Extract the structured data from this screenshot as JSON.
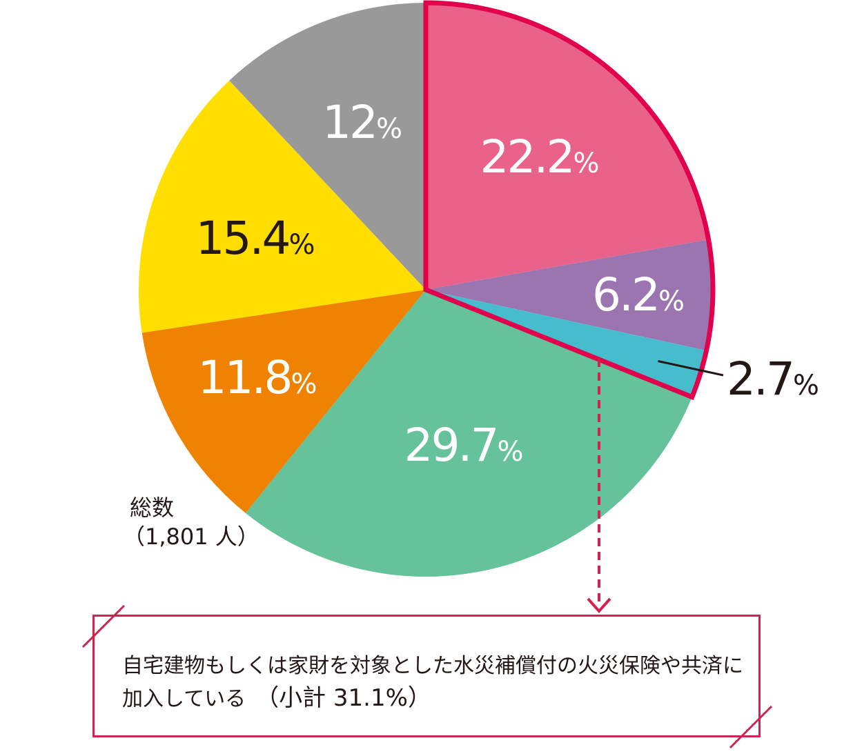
{
  "chart_data": {
    "type": "pie",
    "start_angle_deg": 0,
    "direction": "clockwise",
    "slices": [
      {
        "value": 22.2,
        "label": "22.2",
        "unit": "%",
        "color": "#e96289",
        "text_color": "#ffffff"
      },
      {
        "value": 6.2,
        "label": "6.2",
        "unit": "%",
        "color": "#9b75b0",
        "text_color": "#ffffff"
      },
      {
        "value": 2.7,
        "label": "2.7",
        "unit": "%",
        "color": "#47bccd",
        "text_color": "#231815"
      },
      {
        "value": 29.7,
        "label": "29.7",
        "unit": "%",
        "color": "#65c29a",
        "text_color": "#ffffff"
      },
      {
        "value": 11.8,
        "label": "11.8",
        "unit": "%",
        "color": "#ef8200",
        "text_color": "#ffffff"
      },
      {
        "value": 15.4,
        "label": "15.4",
        "unit": "%",
        "color": "#ffde00",
        "text_color": "#231815"
      },
      {
        "value": 12,
        "label": "12",
        "unit": "%",
        "color": "#999999",
        "text_color": "#ffffff"
      }
    ],
    "highlight_color": "#e0004b",
    "highlight_slices": [
      0,
      1,
      2
    ]
  },
  "total": {
    "line1": "総数",
    "line2": "（1,801 人）"
  },
  "note": {
    "text": "自宅建物もしくは家財を対象とした水災補償付の火災保険や共済に加入している",
    "subtotal": "（小計 31.1%）",
    "border_color": "#d0234f"
  }
}
